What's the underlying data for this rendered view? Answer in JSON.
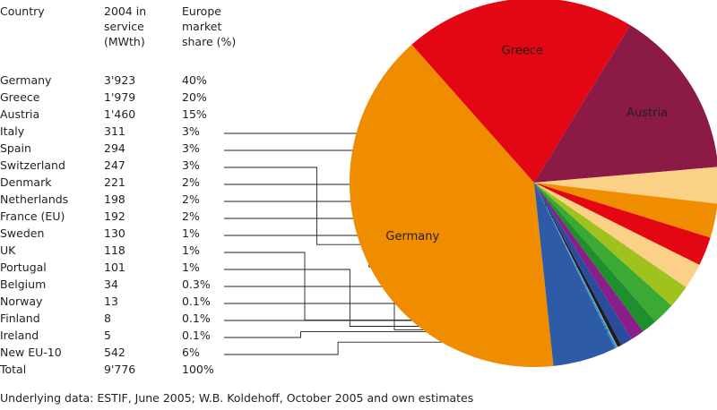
{
  "chart_data": {
    "type": "pie",
    "headers": {
      "country": "Country",
      "in_service": "2004 in\nservice\n(MWth)",
      "share": "Europe\nmarket\nshare (%)"
    },
    "rows": [
      {
        "country": "Germany",
        "mwth": "3'923",
        "share": "40%",
        "value": 3923,
        "color": "#f08c00",
        "label": "Germany"
      },
      {
        "country": "Greece",
        "mwth": "1'979",
        "share": "20%",
        "value": 1979,
        "color": "#e30613",
        "label": "Greece"
      },
      {
        "country": "Austria",
        "mwth": "1'460",
        "share": "15%",
        "value": 1460,
        "color": "#8b1a46",
        "label": "Austria"
      },
      {
        "country": "Italy",
        "mwth": "311",
        "share": "3%",
        "value": 311,
        "color": "#fbd087"
      },
      {
        "country": "Spain",
        "mwth": "294",
        "share": "3%",
        "value": 294,
        "color": "#f08c00"
      },
      {
        "country": "Switzerland",
        "mwth": "247",
        "share": "3%",
        "value": 247,
        "color": "#e30613"
      },
      {
        "country": "Denmark",
        "mwth": "221",
        "share": "2%",
        "value": 221,
        "color": "#fbd087"
      },
      {
        "country": "Netherlands",
        "mwth": "198",
        "share": "2%",
        "value": 198,
        "color": "#9fc21e"
      },
      {
        "country": "France (EU)",
        "mwth": "192",
        "share": "2%",
        "value": 192,
        "color": "#3aaa35"
      },
      {
        "country": "Sweden",
        "mwth": "130",
        "share": "1%",
        "value": 130,
        "color": "#1f8e2c"
      },
      {
        "country": "UK",
        "mwth": "118",
        "share": "1%",
        "value": 118,
        "color": "#8a1f8c"
      },
      {
        "country": "Portugal",
        "mwth": "101",
        "share": "1%",
        "value": 101,
        "color": "#2a4c9c"
      },
      {
        "country": "Belgium",
        "mwth": "34",
        "share": "0.3%",
        "value": 34,
        "color": "#1d1d1b"
      },
      {
        "country": "Norway",
        "mwth": "13",
        "share": "0.1%",
        "value": 13,
        "color": "#6fa8dc"
      },
      {
        "country": "Finland",
        "mwth": "8",
        "share": "0.1%",
        "value": 8,
        "color": "#1d6fa5"
      },
      {
        "country": "Ireland",
        "mwth": "5",
        "share": "0.1%",
        "value": 5,
        "color": "#0aa0c8"
      },
      {
        "country": "New EU-10",
        "mwth": "542",
        "share": "6%",
        "value": 542,
        "color": "#2d5ba8"
      }
    ],
    "total": {
      "country": "Total",
      "mwth": "9'776",
      "share": "100%"
    },
    "source": "Underlying data: ESTIF, June 2005; W.B. Koldehoff, October 2005 and own estimates"
  }
}
